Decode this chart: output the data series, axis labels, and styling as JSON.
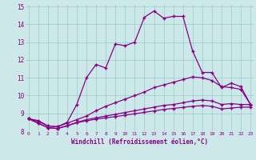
{
  "xlabel": "Windchill (Refroidissement éolien,°C)",
  "bg_color": "#cce8e8",
  "line_color": "#880088",
  "grid_color": "#99cccc",
  "x_min": 0,
  "x_max": 23,
  "y_min": 8,
  "y_max": 15,
  "series": [
    [
      8.7,
      8.6,
      8.3,
      8.25,
      8.5,
      9.5,
      11.0,
      11.75,
      11.55,
      12.9,
      12.8,
      13.0,
      14.4,
      14.75,
      14.35,
      14.45,
      14.45,
      12.5,
      11.3,
      11.3,
      10.45,
      10.7,
      10.5,
      9.5
    ],
    [
      8.7,
      8.55,
      8.3,
      8.25,
      8.45,
      8.65,
      8.85,
      9.15,
      9.4,
      9.6,
      9.8,
      10.0,
      10.2,
      10.45,
      10.6,
      10.75,
      10.9,
      11.05,
      11.0,
      10.85,
      10.5,
      10.45,
      10.35,
      9.5
    ],
    [
      8.7,
      8.45,
      8.2,
      8.15,
      8.3,
      8.5,
      8.65,
      8.75,
      8.85,
      8.95,
      9.05,
      9.15,
      9.25,
      9.35,
      9.45,
      9.5,
      9.6,
      9.7,
      9.75,
      9.7,
      9.5,
      9.55,
      9.5,
      9.5
    ],
    [
      8.7,
      8.45,
      8.2,
      8.15,
      8.3,
      8.48,
      8.58,
      8.68,
      8.75,
      8.82,
      8.9,
      8.98,
      9.06,
      9.14,
      9.22,
      9.28,
      9.34,
      9.4,
      9.44,
      9.4,
      9.25,
      9.3,
      9.35,
      9.35
    ]
  ]
}
